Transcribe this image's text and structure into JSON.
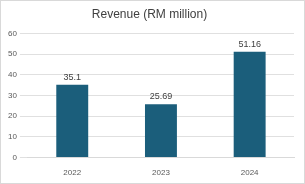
{
  "chart_data": {
    "type": "bar",
    "title": "Revenue (RM million)",
    "categories": [
      "2022",
      "2023",
      "2024"
    ],
    "values": [
      35.1,
      25.69,
      51.16
    ],
    "color": "#1b5e7b",
    "ylim": [
      0,
      60
    ],
    "yticks": [
      0,
      10,
      20,
      30,
      40,
      50,
      60
    ],
    "grid": true,
    "data_labels": true
  }
}
